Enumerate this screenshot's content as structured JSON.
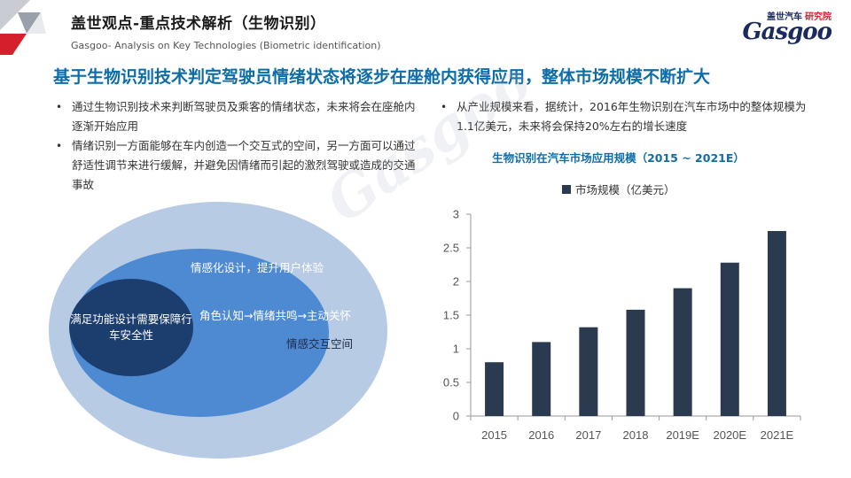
{
  "header": {
    "title": "盖世观点-重点技术解析（生物识别）",
    "subtitle": "Gasgoo- Analysis on Key Technologies (Biometric identification)"
  },
  "logo": {
    "brand_cn": "盖世汽车",
    "institute_cn": "研究院",
    "brand_en": "Gasgoo"
  },
  "headline": "基于生物识别技术判定驾驶员情绪状态将逐步在座舱内获得应用，整体市场规模不断扩大",
  "left_bullets": [
    "通过生物识别技术来判断驾驶员及乘客的情绪状态，未来将会在座舱内逐渐开始应用",
    "情绪识别一方面能够在车内创造一个交互式的空间，另一方面可以通过舒适性调节来进行缓解，并避免因情绪而引起的激烈驾驶或造成的交通事故"
  ],
  "right_bullets": [
    "从产业规模来看，据统计，2016年生物识别在汽车市场中的整体规模为1.1亿美元，未来将会保持20%左右的增长速度"
  ],
  "diagram": {
    "outer": "情感交互空间",
    "middle_top": "情感化设计，提升用户体验",
    "middle_mid": "角色认知→情绪共鸣→主动关怀",
    "core": "满足功能设计需要保障行车安全性"
  },
  "colors": {
    "bar": "#2a3a4f",
    "headline": "#0d6da8",
    "outer": "#b8cbe4",
    "middle": "#4e8ad1",
    "core": "#1b3e6e",
    "accent": "#d61f2c"
  },
  "chart_data": {
    "type": "bar",
    "title": "生物识别在汽车市场应用规模（2015 ~ 2021E）",
    "categories": [
      "2015",
      "2016",
      "2017",
      "2018",
      "2019E",
      "2020E",
      "2021E"
    ],
    "series": [
      {
        "name": "市场规模（亿美元）",
        "values": [
          0.8,
          1.1,
          1.32,
          1.58,
          1.9,
          2.28,
          2.75
        ]
      }
    ],
    "ylim": [
      0,
      3
    ],
    "yticks": [
      "0",
      "0.5",
      "1",
      "1.5",
      "2",
      "2.5",
      "3"
    ],
    "legend": "top",
    "grid": false
  }
}
